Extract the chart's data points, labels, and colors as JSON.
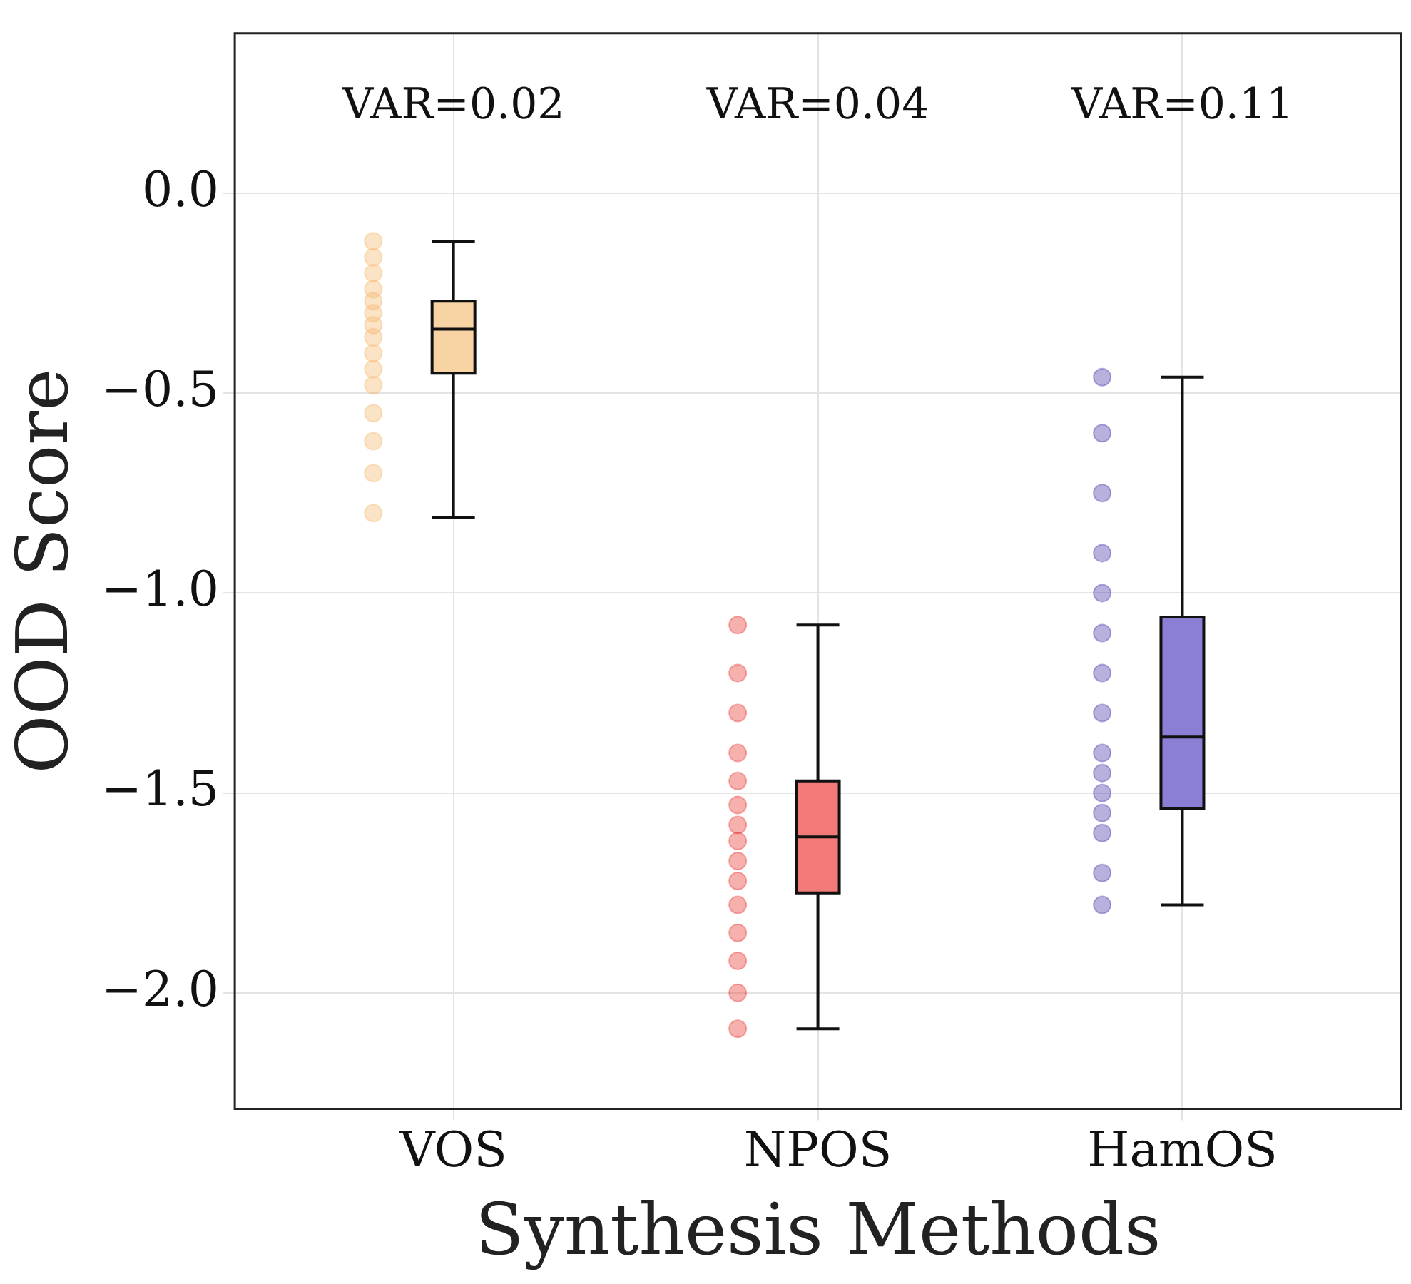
{
  "chart_data": {
    "type": "box",
    "xlabel": "Synthesis Methods",
    "ylabel": "OOD Score",
    "categories": [
      "VOS",
      "NPOS",
      "HamOS"
    ],
    "colors": [
      "#f8d4a4",
      "#f27a78",
      "#8a7fd4"
    ],
    "boxes": [
      {
        "low": -0.81,
        "q1": -0.45,
        "median": -0.34,
        "q3": -0.27,
        "high": -0.12
      },
      {
        "low": -2.09,
        "q1": -1.75,
        "median": -1.61,
        "q3": -1.47,
        "high": -1.08
      },
      {
        "low": -1.78,
        "q1": -1.54,
        "median": -1.36,
        "q3": -1.06,
        "high": -0.46
      }
    ],
    "series": [
      {
        "type": "scatter",
        "color": "#f5b870",
        "x": [
          "VOS",
          "VOS",
          "VOS",
          "VOS",
          "VOS",
          "VOS",
          "VOS",
          "VOS",
          "VOS",
          "VOS",
          "VOS",
          "VOS",
          "VOS",
          "VOS",
          "VOS"
        ],
        "values": [
          -0.12,
          -0.16,
          -0.2,
          -0.24,
          -0.27,
          -0.3,
          -0.33,
          -0.36,
          -0.4,
          -0.44,
          -0.48,
          -0.55,
          -0.62,
          -0.7,
          -0.8
        ]
      },
      {
        "type": "scatter",
        "color": "#e83a34",
        "x": [
          "NPOS",
          "NPOS",
          "NPOS",
          "NPOS",
          "NPOS",
          "NPOS",
          "NPOS",
          "NPOS",
          "NPOS",
          "NPOS",
          "NPOS",
          "NPOS",
          "NPOS",
          "NPOS",
          "NPOS"
        ],
        "values": [
          -1.08,
          -1.2,
          -1.3,
          -1.4,
          -1.47,
          -1.53,
          -1.58,
          -1.62,
          -1.67,
          -1.72,
          -1.78,
          -1.85,
          -1.92,
          -2.0,
          -2.09
        ]
      },
      {
        "type": "scatter",
        "color": "#4a3cac",
        "x": [
          "HamOS",
          "HamOS",
          "HamOS",
          "HamOS",
          "HamOS",
          "HamOS",
          "HamOS",
          "HamOS",
          "HamOS",
          "HamOS",
          "HamOS",
          "HamOS",
          "HamOS",
          "HamOS",
          "HamOS"
        ],
        "values": [
          -0.46,
          -0.6,
          -0.75,
          -0.9,
          -1.0,
          -1.1,
          -1.2,
          -1.3,
          -1.4,
          -1.45,
          -1.5,
          -1.55,
          -1.6,
          -1.7,
          -1.78
        ]
      }
    ],
    "ylim": [
      -2.29,
      0.4
    ],
    "yticks": [
      {
        "value": -2.0,
        "label": "−2.0"
      },
      {
        "value": -1.5,
        "label": "−1.5"
      },
      {
        "value": -1.0,
        "label": "−1.0"
      },
      {
        "value": -0.5,
        "label": "−0.5"
      },
      {
        "value": 0,
        "label": "0.0"
      }
    ],
    "grid": true,
    "legend": false,
    "annotations": [
      "VAR=0.02",
      "VAR=0.04",
      "VAR=0.11"
    ]
  }
}
